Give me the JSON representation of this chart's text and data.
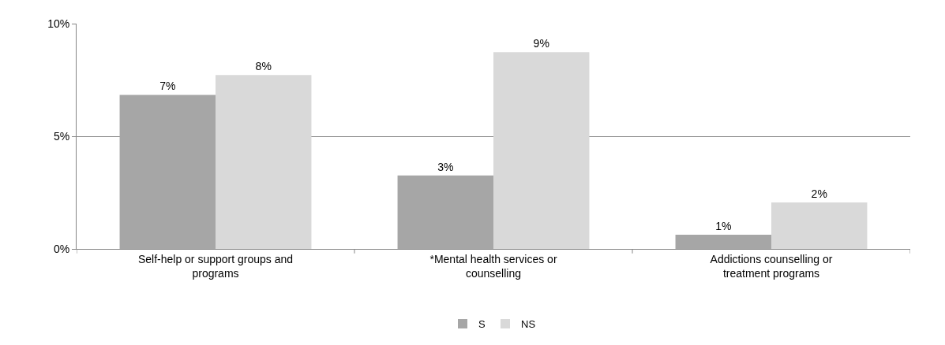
{
  "chart_data": {
    "type": "bar",
    "categories": [
      "Self-help or support groups and programs",
      "*Mental health services or counselling",
      "Addictions counselling or treatment programs"
    ],
    "series": [
      {
        "name": "S",
        "color": "#a6a6a6",
        "values": [
          6.84,
          3.26,
          0.63
        ],
        "value_labels": [
          "7%",
          "3%",
          "1%"
        ]
      },
      {
        "name": "NS",
        "color": "#d9d9d9",
        "values": [
          7.72,
          8.73,
          2.06
        ],
        "value_labels": [
          "8%",
          "9%",
          "2%"
        ]
      }
    ],
    "ylim": [
      0,
      10
    ],
    "yticks": [
      {
        "value": 0,
        "label": "0%"
      },
      {
        "value": 5,
        "label": "5%"
      },
      {
        "value": 10,
        "label": "10%"
      }
    ],
    "grid": "y",
    "legend": "bottom"
  }
}
